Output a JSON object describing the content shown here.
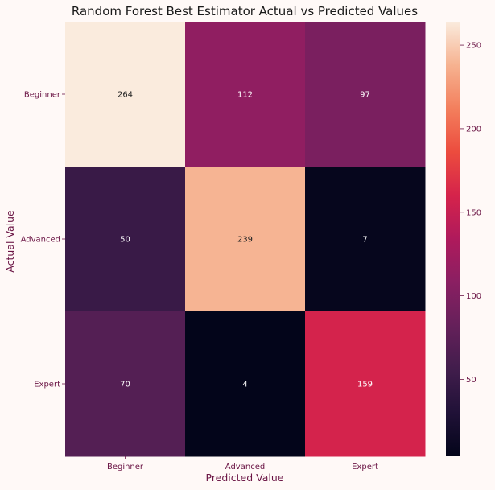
{
  "chart_data": {
    "type": "heatmap",
    "title": "Random Forest Best Estimator Actual vs Predicted Values",
    "xlabel": "Predicted Value",
    "ylabel": "Actual Value",
    "x_categories": [
      "Beginner",
      "Advanced",
      "Expert"
    ],
    "y_categories": [
      "Beginner",
      "Advanced",
      "Expert"
    ],
    "values": [
      [
        264,
        112,
        97
      ],
      [
        50,
        239,
        7
      ],
      [
        70,
        4,
        159
      ]
    ],
    "colorbar": {
      "range": [
        4,
        264
      ],
      "ticks": [
        "50",
        "100",
        "150",
        "200",
        "250"
      ]
    },
    "colormap": "rocket"
  }
}
